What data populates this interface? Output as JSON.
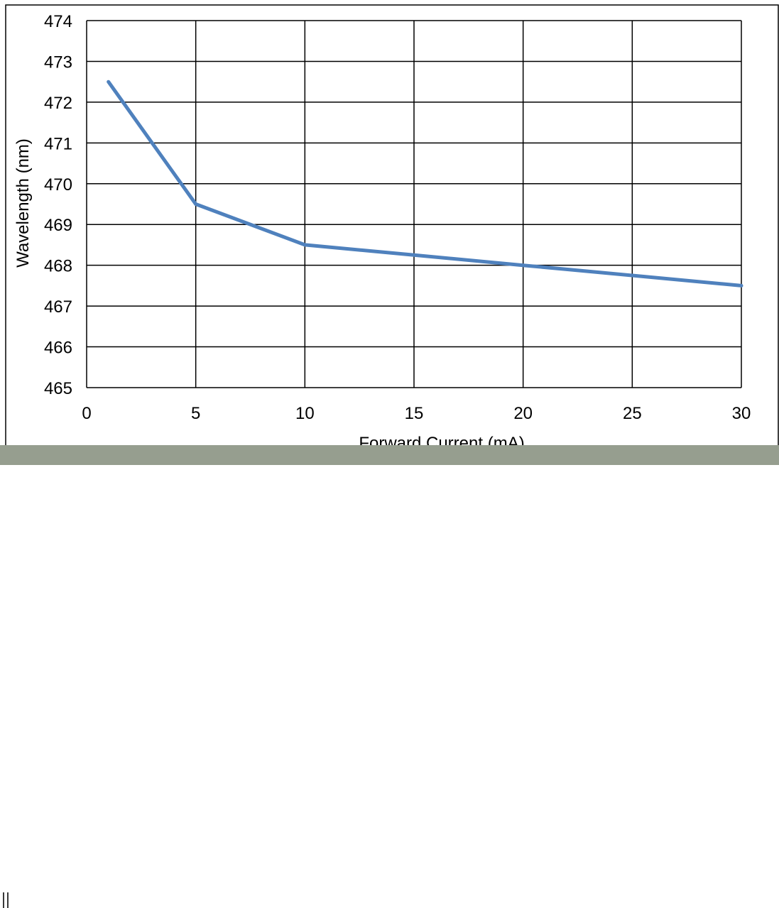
{
  "chart_data": {
    "type": "line",
    "title": "",
    "xlabel": "Forward Current (mA)",
    "ylabel": "Wavelength (nm)",
    "xlim": [
      0,
      30
    ],
    "ylim": [
      465,
      474
    ],
    "x_ticks": [
      "0",
      "5",
      "10",
      "15",
      "20",
      "25",
      "30"
    ],
    "y_ticks": [
      "465",
      "466",
      "467",
      "468",
      "469",
      "470",
      "471",
      "472",
      "473",
      "474"
    ],
    "grid": true,
    "series": [
      {
        "x": [
          1,
          5,
          10,
          15,
          20,
          25,
          30
        ],
        "y": [
          472.5,
          469.5,
          468.5,
          468.25,
          468.0,
          467.75,
          467.5
        ],
        "color": "#4f81bd"
      }
    ]
  }
}
